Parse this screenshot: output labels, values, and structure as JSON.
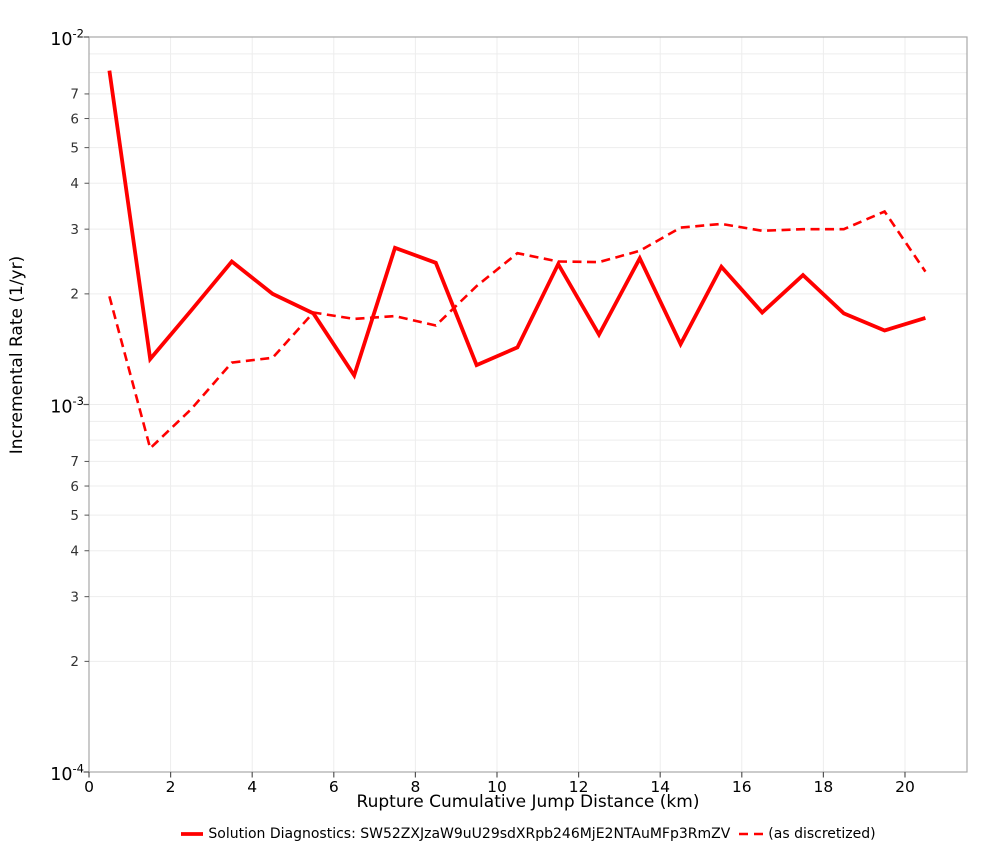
{
  "chart_data": {
    "type": "line",
    "title": "",
    "xlabel": "Rupture Cumulative Jump Distance (km)",
    "ylabel": "Incremental Rate (1/yr)",
    "grid": true,
    "legend_position": "bottom-center",
    "x_axis": {
      "lim": [
        0,
        21.52
      ],
      "ticks": [
        0,
        2,
        4,
        6,
        8,
        10,
        12,
        14,
        16,
        18,
        20
      ],
      "gridline_step_km": 2
    },
    "y_axis": {
      "scale": "log",
      "lim": [
        0.0001,
        0.01
      ],
      "major_ticks": [
        0.01,
        0.001,
        0.0001
      ],
      "labeled_minor_digits": [
        7,
        6,
        5,
        4,
        3,
        2
      ],
      "grid_minor_digits": [
        1,
        2,
        3,
        4,
        5,
        6,
        7,
        8,
        9
      ]
    },
    "x": [
      0.5,
      1.5,
      2.5,
      3.5,
      4.5,
      5.5,
      6.5,
      7.5,
      8.5,
      9.5,
      10.5,
      11.5,
      12.5,
      13.5,
      14.5,
      15.5,
      16.5,
      17.5,
      18.5,
      19.5,
      20.5
    ],
    "series": [
      {
        "name": "Solution Diagnostics: SW52ZXJzaW9uU29sdXRpb246MjE2NTAuMFp3RmZV",
        "line_style": "solid",
        "color": "#ff0000",
        "stroke_width": 3.8,
        "values": [
          0.0081,
          0.00133,
          0.0018,
          0.00245,
          0.002,
          0.00177,
          0.0012,
          0.00267,
          0.00243,
          0.00128,
          0.00143,
          0.00241,
          0.00155,
          0.0025,
          0.00146,
          0.00237,
          0.00178,
          0.00225,
          0.00177,
          0.00159,
          0.00172
        ]
      },
      {
        "name": "(as discretized)",
        "line_style": "dashed",
        "color": "#ff0000",
        "stroke_width": 2.6,
        "values": [
          0.00197,
          0.00076,
          0.00097,
          0.0013,
          0.00134,
          0.00178,
          0.00171,
          0.00174,
          0.00164,
          0.0021,
          0.00258,
          0.00245,
          0.00244,
          0.00262,
          0.00303,
          0.0031,
          0.00297,
          0.003,
          0.003,
          0.00335,
          0.0023
        ]
      }
    ],
    "colors": {
      "frame": "#a8a8a8",
      "grid": "#ededed",
      "tick": "#555555",
      "tick_label": "#000000",
      "minor_tick_label": "#333333"
    }
  }
}
